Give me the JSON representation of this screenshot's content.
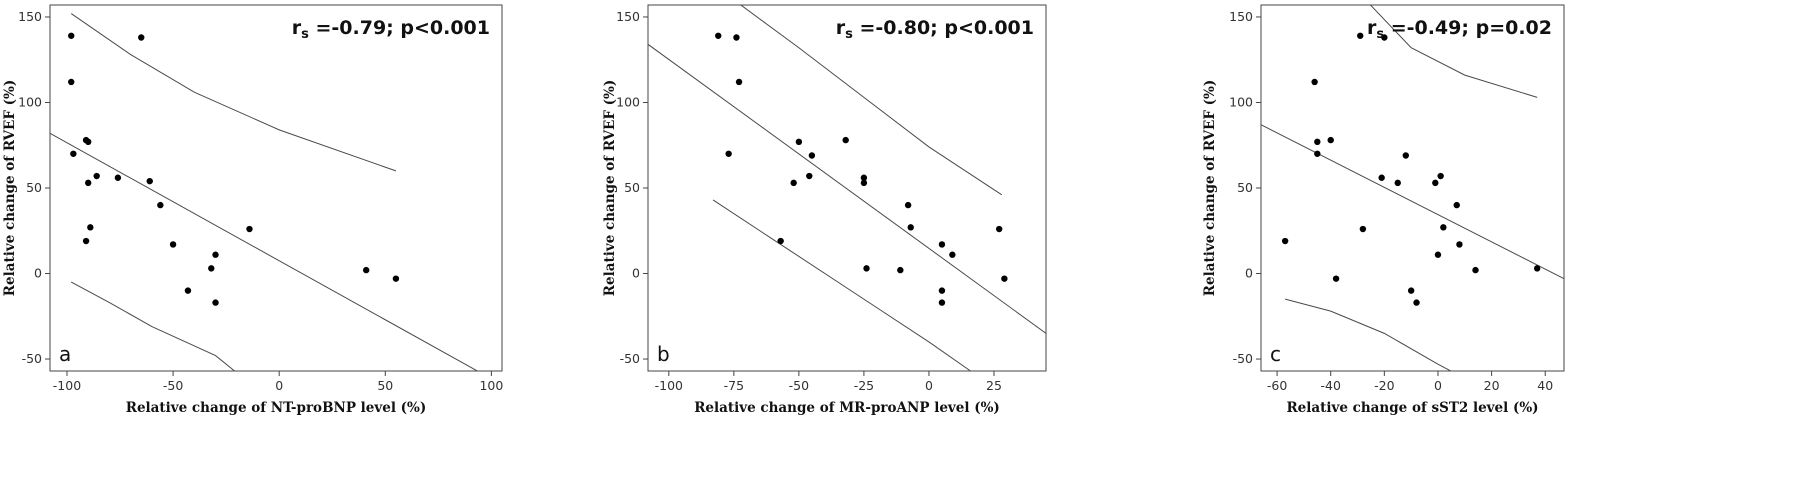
{
  "chart_data": [
    {
      "type": "scatter",
      "panel_label": "a",
      "annotation": {
        "prefix": "r",
        "sub": "s",
        "text": " =-0.79; p<0.001"
      },
      "xlabel": "Relative change of NT-proBNP level (%)",
      "ylabel": "Relative change of RVEF (%)",
      "xlim": [
        -108,
        105
      ],
      "ylim": [
        -57,
        157
      ],
      "xticks": [
        -100,
        -50,
        0,
        50,
        100
      ],
      "yticks": [
        -50,
        0,
        50,
        100,
        150
      ],
      "points": [
        {
          "x": -98,
          "y": 139
        },
        {
          "x": -98,
          "y": 112
        },
        {
          "x": -97,
          "y": 70
        },
        {
          "x": -65,
          "y": 138
        },
        {
          "x": -91,
          "y": 78
        },
        {
          "x": -90,
          "y": 77
        },
        {
          "x": -86,
          "y": 57
        },
        {
          "x": -90,
          "y": 53
        },
        {
          "x": -76,
          "y": 56
        },
        {
          "x": -61,
          "y": 54
        },
        {
          "x": -56,
          "y": 40
        },
        {
          "x": -50,
          "y": 17
        },
        {
          "x": -89,
          "y": 27
        },
        {
          "x": -91,
          "y": 19
        },
        {
          "x": -14,
          "y": 26
        },
        {
          "x": -30,
          "y": 11
        },
        {
          "x": -32,
          "y": 3
        },
        {
          "x": -43,
          "y": -10
        },
        {
          "x": -30,
          "y": -17
        },
        {
          "x": 41,
          "y": 2
        },
        {
          "x": 55,
          "y": -3
        }
      ],
      "fit_line": [
        [
          -108,
          82
        ],
        [
          105,
          -65
        ]
      ],
      "upper_band": [
        [
          -98,
          152
        ],
        [
          -70,
          128
        ],
        [
          -40,
          106
        ],
        [
          0,
          84
        ],
        [
          55,
          60
        ]
      ],
      "lower_band": [
        [
          -98,
          -5
        ],
        [
          -80,
          -17
        ],
        [
          -60,
          -31
        ],
        [
          -30,
          -48
        ],
        [
          -18,
          -60
        ]
      ]
    },
    {
      "type": "scatter",
      "panel_label": "b",
      "annotation": {
        "prefix": "r",
        "sub": "s",
        "text": " =-0.80; p<0.001"
      },
      "xlabel": "Relative change of MR-proANP level (%)",
      "ylabel": "Relative change of RVEF (%)",
      "xlim": [
        -108,
        45
      ],
      "ylim": [
        -57,
        157
      ],
      "xticks": [
        -100,
        -75,
        -50,
        -25,
        0,
        25
      ],
      "yticks": [
        -50,
        0,
        50,
        100,
        150
      ],
      "points": [
        {
          "x": -81,
          "y": 139
        },
        {
          "x": -74,
          "y": 138
        },
        {
          "x": -73,
          "y": 112
        },
        {
          "x": -77,
          "y": 70
        },
        {
          "x": -50,
          "y": 77
        },
        {
          "x": -45,
          "y": 69
        },
        {
          "x": -32,
          "y": 78
        },
        {
          "x": -52,
          "y": 53
        },
        {
          "x": -46,
          "y": 57
        },
        {
          "x": -25,
          "y": 56
        },
        {
          "x": -25,
          "y": 53
        },
        {
          "x": -57,
          "y": 19
        },
        {
          "x": -8,
          "y": 40
        },
        {
          "x": -7,
          "y": 27
        },
        {
          "x": -24,
          "y": 3
        },
        {
          "x": -11,
          "y": 2
        },
        {
          "x": 5,
          "y": 17
        },
        {
          "x": 9,
          "y": 11
        },
        {
          "x": 5,
          "y": -10
        },
        {
          "x": 5,
          "y": -17
        },
        {
          "x": 27,
          "y": 26
        },
        {
          "x": 29,
          "y": -3
        }
      ],
      "fit_line": [
        [
          -108,
          134
        ],
        [
          45,
          -35
        ]
      ],
      "upper_band": [
        [
          -75,
          160
        ],
        [
          -50,
          132
        ],
        [
          -25,
          103
        ],
        [
          0,
          74
        ],
        [
          28,
          46
        ]
      ],
      "lower_band": [
        [
          -83,
          43
        ],
        [
          -60,
          20
        ],
        [
          -30,
          -10
        ],
        [
          0,
          -40
        ],
        [
          16,
          -57
        ]
      ]
    },
    {
      "type": "scatter",
      "panel_label": "c",
      "annotation": {
        "prefix": "r",
        "sub": "s",
        "text": " =-0.49; p=0.02"
      },
      "xlabel": "Relative change of sST2 level (%)",
      "ylabel": "Relative change of RVEF (%)",
      "xlim": [
        -66,
        47
      ],
      "ylim": [
        -57,
        157
      ],
      "xticks": [
        -60,
        -40,
        -20,
        0,
        20,
        40
      ],
      "yticks": [
        -50,
        0,
        50,
        100,
        150
      ],
      "points": [
        {
          "x": -29,
          "y": 139
        },
        {
          "x": -20,
          "y": 138
        },
        {
          "x": -46,
          "y": 112
        },
        {
          "x": -45,
          "y": 77
        },
        {
          "x": -40,
          "y": 78
        },
        {
          "x": -45,
          "y": 70
        },
        {
          "x": -12,
          "y": 69
        },
        {
          "x": -21,
          "y": 56
        },
        {
          "x": -15,
          "y": 53
        },
        {
          "x": -1,
          "y": 53
        },
        {
          "x": 1,
          "y": 57
        },
        {
          "x": 7,
          "y": 40
        },
        {
          "x": -28,
          "y": 26
        },
        {
          "x": 2,
          "y": 27
        },
        {
          "x": 8,
          "y": 17
        },
        {
          "x": -57,
          "y": 19
        },
        {
          "x": 0,
          "y": 11
        },
        {
          "x": 14,
          "y": 2
        },
        {
          "x": 37,
          "y": 3
        },
        {
          "x": -38,
          "y": -3
        },
        {
          "x": -10,
          "y": -10
        },
        {
          "x": -8,
          "y": -17
        }
      ],
      "fit_line": [
        [
          -66,
          87
        ],
        [
          47,
          -3
        ]
      ],
      "upper_band": [
        [
          -27,
          160
        ],
        [
          -10,
          132
        ],
        [
          10,
          116
        ],
        [
          37,
          103
        ]
      ],
      "lower_band": [
        [
          -57,
          -15
        ],
        [
          -40,
          -22
        ],
        [
          -20,
          -35
        ],
        [
          0,
          -53
        ],
        [
          6,
          -58
        ]
      ]
    }
  ]
}
